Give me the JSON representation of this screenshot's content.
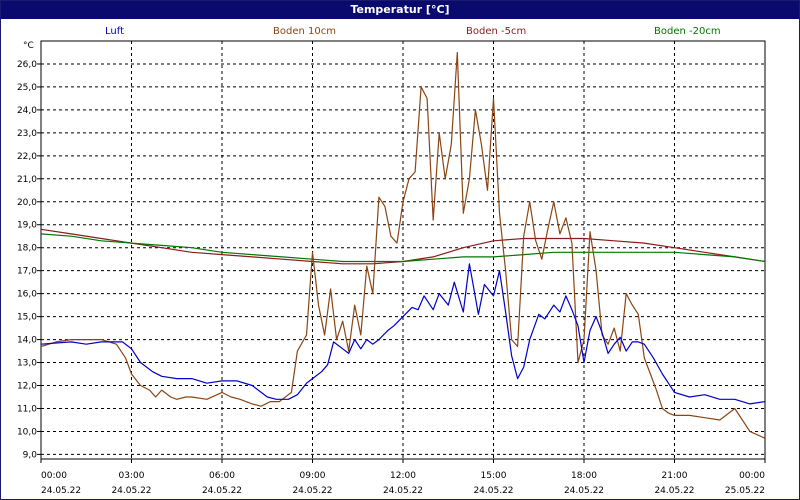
{
  "window": {
    "title": "Temperatur [°C]"
  },
  "chart_data": {
    "type": "line",
    "title": "Temperatur [°C]",
    "ylabel": "°C",
    "ylim": [
      8.8,
      27.0
    ],
    "yticks": [
      "9,0",
      "10,0",
      "11,0",
      "12,0",
      "13,0",
      "14,0",
      "15,0",
      "16,0",
      "17,0",
      "18,0",
      "19,0",
      "20,0",
      "21,0",
      "22,0",
      "23,0",
      "24,0",
      "25,0",
      "26,0"
    ],
    "xlim": [
      0,
      24
    ],
    "xticks": [
      {
        "hour": 0,
        "time": "00:00",
        "date": "24.05.22"
      },
      {
        "hour": 3,
        "time": "03:00",
        "date": "24.05.22"
      },
      {
        "hour": 6,
        "time": "06:00",
        "date": "24.05.22"
      },
      {
        "hour": 9,
        "time": "09:00",
        "date": "24.05.22"
      },
      {
        "hour": 12,
        "time": "12:00",
        "date": "24.05.22"
      },
      {
        "hour": 15,
        "time": "15:00",
        "date": "24.05.22"
      },
      {
        "hour": 18,
        "time": "18:00",
        "date": "24.05.22"
      },
      {
        "hour": 21,
        "time": "21:00",
        "date": "24.05.22"
      },
      {
        "hour": 24,
        "time": "00:00",
        "date": "25.05.22"
      }
    ],
    "grid": true,
    "legend_position": "top",
    "series": [
      {
        "name": "Luft",
        "color": "#0000cc",
        "x": [
          0,
          1,
          1.5,
          2,
          2.7,
          3,
          3.3,
          3.7,
          4,
          4.5,
          5,
          5.5,
          6,
          6.5,
          7,
          7.3,
          7.5,
          7.8,
          8,
          8.2,
          8.5,
          8.8,
          9,
          9.3,
          9.5,
          9.7,
          10,
          10.2,
          10.4,
          10.6,
          10.8,
          11,
          11.2,
          11.5,
          11.7,
          12,
          12.3,
          12.5,
          12.7,
          13,
          13.2,
          13.5,
          13.7,
          14,
          14.2,
          14.5,
          14.7,
          15,
          15.2,
          15.4,
          15.6,
          15.8,
          16,
          16.2,
          16.5,
          16.7,
          17,
          17.2,
          17.4,
          17.6,
          17.8,
          18,
          18.2,
          18.4,
          18.6,
          18.8,
          19,
          19.2,
          19.4,
          19.6,
          19.8,
          20,
          20.3,
          20.6,
          21,
          21.5,
          22,
          22.5,
          23,
          23.5,
          24
        ],
        "y": [
          13.8,
          13.9,
          13.8,
          13.9,
          13.9,
          13.6,
          13.0,
          12.6,
          12.4,
          12.3,
          12.3,
          12.1,
          12.2,
          12.2,
          12.0,
          11.7,
          11.5,
          11.4,
          11.4,
          11.4,
          11.6,
          12.1,
          12.3,
          12.6,
          12.9,
          13.9,
          13.6,
          13.4,
          14.0,
          13.6,
          14.0,
          13.8,
          14.0,
          14.4,
          14.6,
          15.0,
          15.4,
          15.3,
          15.9,
          15.3,
          16.0,
          15.5,
          16.5,
          15.2,
          17.3,
          15.1,
          16.4,
          15.9,
          17.0,
          15.2,
          13.3,
          12.3,
          12.8,
          14.0,
          15.1,
          14.9,
          15.5,
          15.2,
          15.9,
          15.3,
          14.6,
          13.0,
          14.4,
          15.0,
          14.3,
          13.4,
          13.8,
          14.1,
          13.5,
          13.9,
          13.9,
          13.8,
          13.2,
          12.5,
          11.7,
          11.5,
          11.6,
          11.4,
          11.4,
          11.2,
          11.3
        ]
      },
      {
        "name": "Boden 10cm",
        "color": "#8b4513",
        "x": [
          0,
          0.5,
          1,
          1.5,
          2,
          2.5,
          2.8,
          3,
          3.3,
          3.6,
          3.8,
          4,
          4.3,
          4.5,
          4.8,
          5,
          5.5,
          6,
          6.3,
          6.6,
          7,
          7.3,
          7.6,
          7.9,
          8,
          8.3,
          8.5,
          8.8,
          9,
          9.2,
          9.4,
          9.6,
          9.8,
          10,
          10.2,
          10.4,
          10.6,
          10.8,
          11,
          11.2,
          11.4,
          11.6,
          11.8,
          12,
          12.2,
          12.4,
          12.6,
          12.8,
          13,
          13.2,
          13.4,
          13.6,
          13.8,
          14,
          14.2,
          14.4,
          14.6,
          14.8,
          15,
          15.2,
          15.4,
          15.6,
          15.8,
          16,
          16.2,
          16.4,
          16.6,
          16.8,
          17,
          17.2,
          17.4,
          17.6,
          17.8,
          18,
          18.2,
          18.4,
          18.6,
          18.8,
          19,
          19.2,
          19.4,
          19.6,
          19.8,
          20,
          20.2,
          20.4,
          20.6,
          20.8,
          21,
          21.5,
          22,
          22.5,
          23,
          23.5,
          24
        ],
        "y": [
          13.7,
          13.9,
          14.0,
          14.0,
          14.0,
          13.8,
          13.2,
          12.5,
          12.0,
          11.8,
          11.5,
          11.8,
          11.5,
          11.4,
          11.5,
          11.5,
          11.4,
          11.7,
          11.5,
          11.4,
          11.2,
          11.1,
          11.3,
          11.3,
          11.4,
          11.7,
          13.5,
          14.2,
          17.8,
          15.5,
          14.2,
          16.2,
          14.0,
          14.8,
          13.5,
          15.5,
          14.2,
          17.2,
          16.0,
          20.2,
          19.8,
          18.5,
          18.2,
          20.0,
          21.0,
          21.3,
          25.0,
          24.5,
          19.2,
          23.0,
          21.0,
          22.5,
          26.5,
          19.5,
          21.0,
          24.0,
          22.5,
          20.5,
          24.5,
          19.5,
          17.0,
          14.0,
          13.7,
          18.5,
          20.0,
          18.3,
          17.5,
          18.8,
          20.0,
          18.6,
          19.3,
          18.2,
          13.0,
          14.0,
          18.7,
          17.0,
          14.2,
          13.8,
          14.5,
          13.5,
          16.0,
          15.5,
          15.1,
          13.2,
          12.5,
          11.8,
          11.0,
          10.8,
          10.7,
          10.7,
          10.6,
          10.5,
          11.0,
          10.0,
          9.7
        ]
      },
      {
        "name": "Boden -5cm",
        "color": "#8b1a1a",
        "x": [
          0,
          1,
          2,
          3,
          4,
          5,
          6,
          7,
          8,
          9,
          10,
          11,
          12,
          13,
          14,
          15,
          16,
          17,
          18,
          19,
          20,
          21,
          22,
          23,
          24
        ],
        "y": [
          18.8,
          18.6,
          18.4,
          18.2,
          18.0,
          17.8,
          17.7,
          17.6,
          17.5,
          17.4,
          17.3,
          17.3,
          17.4,
          17.6,
          18.0,
          18.3,
          18.4,
          18.4,
          18.4,
          18.3,
          18.2,
          18.0,
          17.8,
          17.6,
          17.4
        ]
      },
      {
        "name": "Boden -20cm",
        "color": "#007700",
        "x": [
          0,
          1,
          2,
          3,
          4,
          5,
          6,
          7,
          8,
          9,
          10,
          11,
          12,
          13,
          14,
          15,
          16,
          17,
          18,
          19,
          20,
          21,
          22,
          23,
          24
        ],
        "y": [
          18.6,
          18.5,
          18.3,
          18.2,
          18.1,
          18.0,
          17.8,
          17.7,
          17.6,
          17.5,
          17.4,
          17.4,
          17.4,
          17.5,
          17.6,
          17.6,
          17.7,
          17.8,
          17.8,
          17.8,
          17.8,
          17.8,
          17.7,
          17.6,
          17.4
        ]
      }
    ]
  }
}
